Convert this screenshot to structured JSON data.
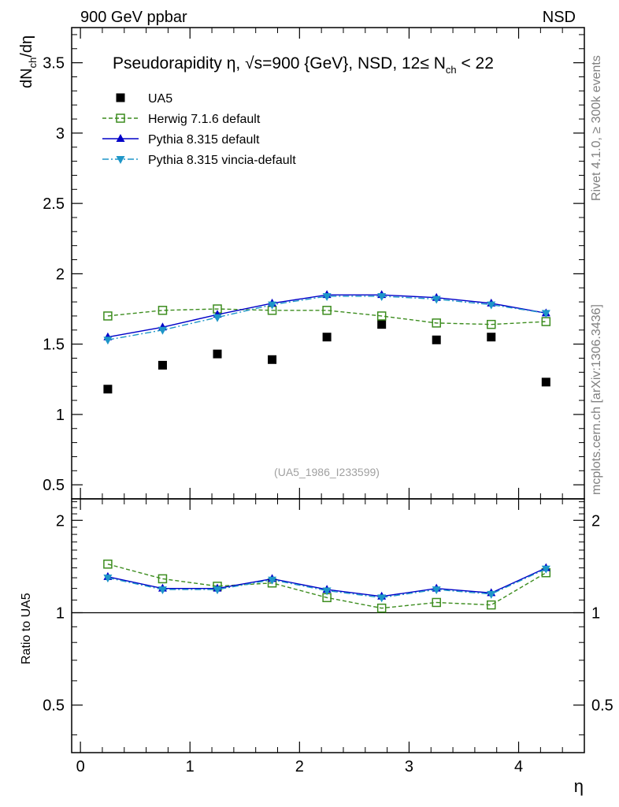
{
  "header": {
    "left": "900 GeV ppbar",
    "right": "NSD"
  },
  "side_labels": {
    "rivet": "Rivet 4.1.0, ≥ 300k events",
    "mcplots": "mcplots.cern.ch [arXiv:1306.3436]"
  },
  "chart_data": [
    {
      "type": "scatter",
      "title": "Pseudorapidity η, √s=900 {GeV}, NSD, 12≤ N_ch < 22",
      "ylabel": "dN_ch/dη",
      "xlabel": "",
      "analysis_tag": "(UA5_1986_I233599)",
      "xlim": [
        -0.08,
        4.6
      ],
      "ylim": [
        0.4,
        3.75
      ],
      "yticks": [
        "0.5",
        "1",
        "1.5",
        "2",
        "2.5",
        "3",
        "3.5"
      ],
      "ytick_values": [
        0.5,
        1,
        1.5,
        2,
        2.5,
        3,
        3.5
      ],
      "legend_position": "top-left",
      "x": [
        0.25,
        0.75,
        1.25,
        1.75,
        2.25,
        2.75,
        3.25,
        3.75,
        4.25
      ],
      "series": [
        {
          "name": "UA5",
          "marker": "square-filled",
          "line": "none",
          "color": "#000000",
          "values": [
            1.18,
            1.35,
            1.43,
            1.39,
            1.55,
            1.64,
            1.53,
            1.55,
            1.23
          ]
        },
        {
          "name": "Herwig 7.1.6 default",
          "marker": "square-open",
          "line": "dashed",
          "color": "#3c8c1e",
          "values": [
            1.7,
            1.74,
            1.75,
            1.74,
            1.74,
            1.7,
            1.65,
            1.64,
            1.66
          ]
        },
        {
          "name": "Pythia 8.315 default",
          "marker": "triangle-up",
          "line": "solid",
          "color": "#0000c8",
          "values": [
            1.55,
            1.62,
            1.71,
            1.79,
            1.85,
            1.85,
            1.83,
            1.79,
            1.72
          ]
        },
        {
          "name": "Pythia 8.315 vincia-default",
          "marker": "triangle-down",
          "line": "dashdot",
          "color": "#1e96c8",
          "values": [
            1.53,
            1.6,
            1.69,
            1.78,
            1.84,
            1.84,
            1.82,
            1.78,
            1.72
          ]
        }
      ]
    },
    {
      "type": "line",
      "ylabel": "Ratio to UA5",
      "xlabel": "η",
      "xlim": [
        -0.08,
        4.6
      ],
      "ylim": [
        0.35,
        2.35
      ],
      "yscale": "log",
      "yticks": [
        "0.5",
        "1",
        "2"
      ],
      "ytick_values": [
        0.5,
        1,
        2
      ],
      "xticks": [
        "0",
        "1",
        "2",
        "3",
        "4"
      ],
      "xtick_values": [
        0,
        1,
        2,
        3,
        4
      ],
      "reference_line": 1,
      "x": [
        0.25,
        0.75,
        1.25,
        1.75,
        2.25,
        2.75,
        3.25,
        3.75,
        4.25
      ],
      "series": [
        {
          "name": "Herwig 7.1.6 default",
          "marker": "square-open",
          "line": "dashed",
          "color": "#3c8c1e",
          "values": [
            1.44,
            1.29,
            1.22,
            1.25,
            1.12,
            1.035,
            1.08,
            1.06,
            1.35
          ]
        },
        {
          "name": "Pythia 8.315 default",
          "marker": "triangle-up",
          "line": "solid",
          "color": "#0000c8",
          "values": [
            1.31,
            1.2,
            1.2,
            1.29,
            1.19,
            1.13,
            1.2,
            1.16,
            1.4
          ]
        },
        {
          "name": "Pythia 8.315 vincia-default",
          "marker": "triangle-down",
          "line": "dashdot",
          "color": "#1e96c8",
          "values": [
            1.3,
            1.19,
            1.19,
            1.28,
            1.18,
            1.12,
            1.19,
            1.15,
            1.39
          ]
        }
      ]
    }
  ]
}
